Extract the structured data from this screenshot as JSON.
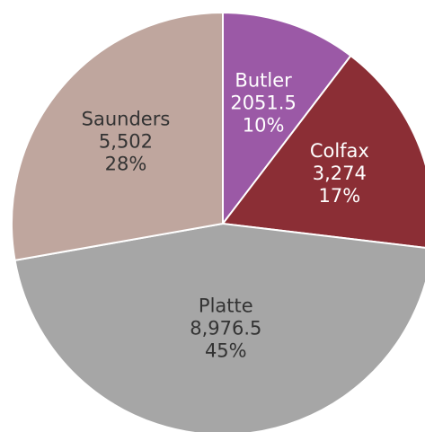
{
  "chart_data": {
    "type": "pie",
    "categories": [
      "Butler",
      "Colfax",
      "Platte",
      "Saunders"
    ],
    "values": [
      2051.5,
      3274,
      8976.5,
      5502
    ],
    "value_labels": [
      "2051.5",
      "3,274",
      "8,976.5",
      "5,502"
    ],
    "percent_labels": [
      "10%",
      "17%",
      "45%",
      "28%"
    ],
    "colors": [
      "#9b59a6",
      "#8b2e35",
      "#a6a6a6",
      "#bfa69e"
    ],
    "label_colors": [
      "#ffffff",
      "#ffffff",
      "#333333",
      "#333333"
    ]
  }
}
